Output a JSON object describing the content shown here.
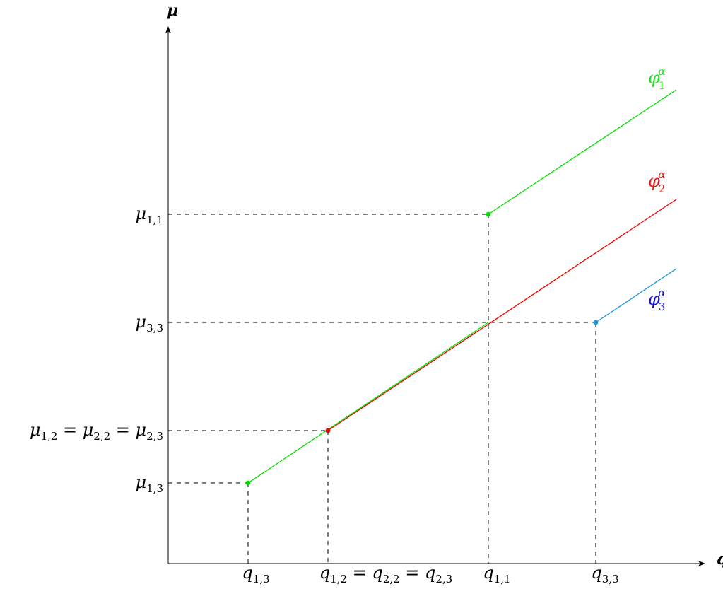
{
  "axes": {
    "x_label": "q",
    "y_label": "μ"
  },
  "x_ticks": [
    {
      "id": "q13",
      "base": "q",
      "sub": "1,3"
    },
    {
      "id": "q12",
      "base": "q",
      "sub": "1,2",
      "eq": [
        {
          "base": "q",
          "sub": "2,2"
        },
        {
          "base": "q",
          "sub": "2,3"
        }
      ]
    },
    {
      "id": "q11",
      "base": "q",
      "sub": "1,1"
    },
    {
      "id": "q33",
      "base": "q",
      "sub": "3,3"
    }
  ],
  "y_ticks": [
    {
      "id": "mu11",
      "base": "μ",
      "sub": "1,1"
    },
    {
      "id": "mu33",
      "base": "μ",
      "sub": "3,3"
    },
    {
      "id": "mu12",
      "base": "μ",
      "sub": "1,2",
      "eq": [
        {
          "base": "μ",
          "sub": "2,2"
        },
        {
          "base": "μ",
          "sub": "2,3"
        }
      ]
    },
    {
      "id": "mu13",
      "base": "μ",
      "sub": "1,3"
    }
  ],
  "curves": [
    {
      "id": "phi1",
      "base": "φ",
      "sub": "1",
      "sup": "α",
      "color": "#00e000",
      "label_color": "#22dd22"
    },
    {
      "id": "phi2",
      "base": "φ",
      "sub": "2",
      "sup": "α",
      "color": "#ee0000",
      "label_color": "#ee1111"
    },
    {
      "id": "phi3",
      "base": "φ",
      "sub": "3",
      "sup": "α",
      "color": "#1a9ad8",
      "label_color": "#1111dd"
    }
  ],
  "colors": {
    "axis": "#000000",
    "guide": "#000000",
    "green": "#00e000",
    "red": "#ee0000",
    "blue": "#1a9ad8"
  }
}
